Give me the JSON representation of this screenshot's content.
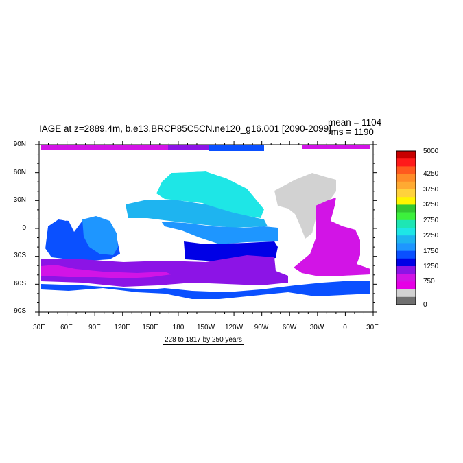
{
  "title": "IAGE at z=2889.4m, b.e13.BRCP85C5CN.ne120_g16.001 [2090-2099]",
  "stats": {
    "mean": "mean = 1104",
    "rms": "rms = 1190"
  },
  "subtitle": "228 to 1817 by 250 years",
  "lat_labels": [
    "90N",
    "60N",
    "30N",
    "0",
    "30S",
    "60S",
    "90S"
  ],
  "lon_labels": [
    "30E",
    "60E",
    "90E",
    "120E",
    "150E",
    "180",
    "150W",
    "120W",
    "90W",
    "60W",
    "30W",
    "0",
    "30E"
  ],
  "colorbar": {
    "labels": [
      "5000",
      "4250",
      "3750",
      "3250",
      "2750",
      "2250",
      "1750",
      "1250",
      "750",
      "0"
    ],
    "colors": [
      "#c80000",
      "#ff1a1a",
      "#ff5a1e",
      "#ff8c28",
      "#ffaa32",
      "#ffd23c",
      "#fff500",
      "#32c832",
      "#3cf03c",
      "#1ee6b4",
      "#1ee6e6",
      "#1eb4f0",
      "#1e96ff",
      "#0a50ff",
      "#0000e6",
      "#8c14e6",
      "#d214e6",
      "#e600e6",
      "#d2d2d2",
      "#707070"
    ]
  },
  "map": {
    "land_color": "#ffffff",
    "no_data_color": "#d2d2d2",
    "field_colors": {
      "cyan": "#1ee6e6",
      "sky": "#1eb4f0",
      "azure": "#1e96ff",
      "blue": "#0a50ff",
      "navy": "#0000e6",
      "violet": "#8c14e6",
      "magenta": "#d214e6"
    }
  }
}
